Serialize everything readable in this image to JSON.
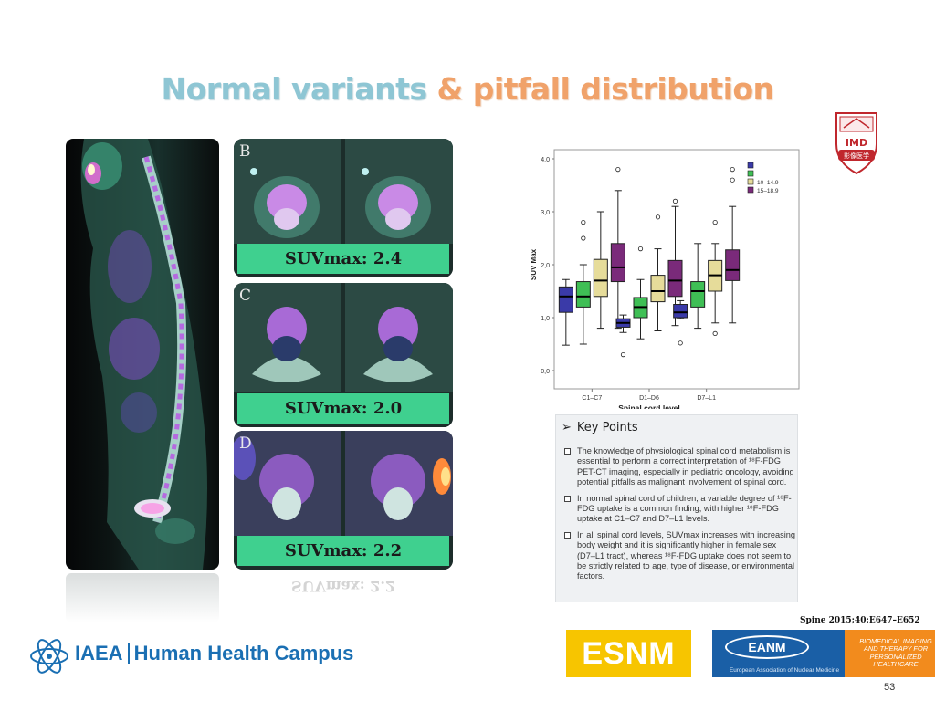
{
  "slide": {
    "title_part1": "Normal variants",
    "title_part2": "& pitfall distribution",
    "page_number": "53",
    "citation": "Spine 2015;40:E647–E652"
  },
  "panels": [
    {
      "letter": "B",
      "caption": "SUVmax: 2.4"
    },
    {
      "letter": "C",
      "caption": "SUVmax: 2.0"
    },
    {
      "letter": "D",
      "caption": "SUVmax: 2.2"
    }
  ],
  "caption_reflection": "SUVmax: 2.2",
  "key_points": {
    "heading": "Key Points",
    "items": [
      "The knowledge of physiological spinal cord metabolism is essential to perform a correct interpretation of ¹⁸F-FDG PET-CT imaging, especially in pediatric oncology, avoiding potential pitfalls as malignant involvement of spinal cord.",
      "In normal spinal cord of children, a variable degree of ¹⁸F-FDG uptake is a common finding, with higher ¹⁸F-FDG uptake at C1–C7 and D7–L1 levels.",
      "In all spinal cord levels, SUVmax increases with increasing body weight and it is significantly higher in female sex (D7–L1 tract), whereas ¹⁸F-FDG uptake does not seem to be strictly related to age, type of disease, or environmental factors."
    ]
  },
  "footer": {
    "org": "IAEA",
    "campus": "Human Health Campus",
    "esnm": "ESNM",
    "eanm": "EANM",
    "eanm_full": "European Association of Nuclear Medicine",
    "eanm_tagline": "Biomedical imaging and therapy for personalized healthcare"
  },
  "imd_logo": {
    "text": "IMD",
    "chinese": "影像医学"
  },
  "chart_data": {
    "type": "box",
    "xlabel": "Spinal cord level",
    "ylabel": "SUV Max",
    "categories": [
      "C1–C7",
      "D1–D6",
      "D7–L1"
    ],
    "ylim": [
      0,
      4
    ],
    "yticks": [
      "0,0",
      "1,0",
      "2,0",
      "3,0",
      "4,0"
    ],
    "legend_placement": "top-right",
    "series": [
      {
        "name": "",
        "color": "#3a3aa8",
        "boxes": [
          {
            "min": 0.48,
            "q1": 1.1,
            "median": 1.4,
            "q3": 1.58,
            "max": 1.72,
            "outliers": []
          },
          {
            "min": 0.72,
            "q1": 0.82,
            "median": 0.9,
            "q3": 0.98,
            "max": 1.05,
            "outliers": [
              0.3
            ]
          },
          {
            "min": 0.98,
            "q1": 1.0,
            "median": 1.1,
            "q3": 1.25,
            "max": 1.32,
            "outliers": [
              0.52
            ]
          }
        ]
      },
      {
        "name": "",
        "color": "#3fbf55",
        "boxes": [
          {
            "min": 0.5,
            "q1": 1.2,
            "median": 1.4,
            "q3": 1.68,
            "max": 2.0,
            "outliers": [
              2.5,
              2.8
            ]
          },
          {
            "min": 0.6,
            "q1": 1.0,
            "median": 1.2,
            "q3": 1.38,
            "max": 1.72,
            "outliers": [
              2.3
            ]
          },
          {
            "min": 0.8,
            "q1": 1.2,
            "median": 1.5,
            "q3": 1.68,
            "max": 2.4,
            "outliers": []
          }
        ]
      },
      {
        "name": "10–14.9",
        "color": "#e6dc9a",
        "boxes": [
          {
            "min": 0.8,
            "q1": 1.4,
            "median": 1.7,
            "q3": 2.1,
            "max": 3.0,
            "outliers": []
          },
          {
            "min": 0.75,
            "q1": 1.3,
            "median": 1.5,
            "q3": 1.8,
            "max": 2.3,
            "outliers": [
              2.9
            ]
          },
          {
            "min": 0.9,
            "q1": 1.5,
            "median": 1.8,
            "q3": 2.08,
            "max": 2.4,
            "outliers": [
              0.7,
              2.8
            ]
          }
        ]
      },
      {
        "name": "15–18.9",
        "color": "#7a2a7a",
        "boxes": [
          {
            "min": 0.8,
            "q1": 1.68,
            "median": 1.95,
            "q3": 2.4,
            "max": 3.4,
            "outliers": [
              3.8
            ]
          },
          {
            "min": 0.85,
            "q1": 1.4,
            "median": 1.7,
            "q3": 2.08,
            "max": 3.1,
            "outliers": [
              3.2
            ]
          },
          {
            "min": 0.9,
            "q1": 1.7,
            "median": 1.9,
            "q3": 2.28,
            "max": 3.1,
            "outliers": [
              3.6,
              3.8
            ]
          }
        ]
      }
    ]
  }
}
